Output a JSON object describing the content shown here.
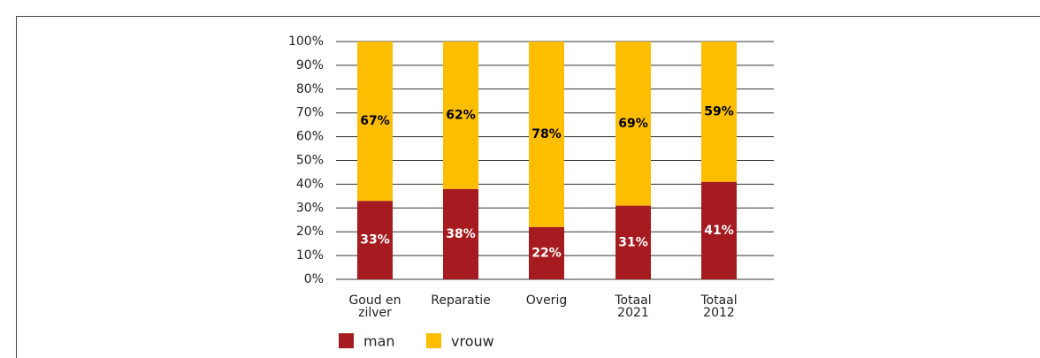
{
  "chart_data": {
    "type": "stacked_bar",
    "categories": [
      [
        "Goud en",
        "zilver"
      ],
      [
        "Reparatie"
      ],
      [
        "Overig"
      ],
      [
        "Totaal",
        "2021"
      ],
      [
        "Totaal",
        "2012"
      ]
    ],
    "series": [
      {
        "name": "man",
        "color": "#a61b1f",
        "values": [
          33,
          38,
          22,
          31,
          41
        ],
        "value_labels": [
          "33%",
          "38%",
          "22%",
          "31%",
          "41%"
        ],
        "label_color": "#ffffff"
      },
      {
        "name": "vrouw",
        "color": "#fdbd00",
        "values": [
          67,
          62,
          78,
          69,
          59
        ],
        "value_labels": [
          "67%",
          "62%",
          "78%",
          "69%",
          "59%"
        ],
        "label_color": "#000000"
      }
    ],
    "ylim": [
      0,
      100
    ],
    "yticks": [
      {
        "value": 0,
        "label": "0%"
      },
      {
        "value": 10,
        "label": "10%"
      },
      {
        "value": 20,
        "label": "20%"
      },
      {
        "value": 30,
        "label": "30%"
      },
      {
        "value": 40,
        "label": "40%"
      },
      {
        "value": 50,
        "label": "50%"
      },
      {
        "value": 60,
        "label": "60%"
      },
      {
        "value": 70,
        "label": "70%"
      },
      {
        "value": 80,
        "label": "80%"
      },
      {
        "value": 90,
        "label": "90%"
      },
      {
        "value": 100,
        "label": "100%"
      }
    ],
    "grid": true
  }
}
